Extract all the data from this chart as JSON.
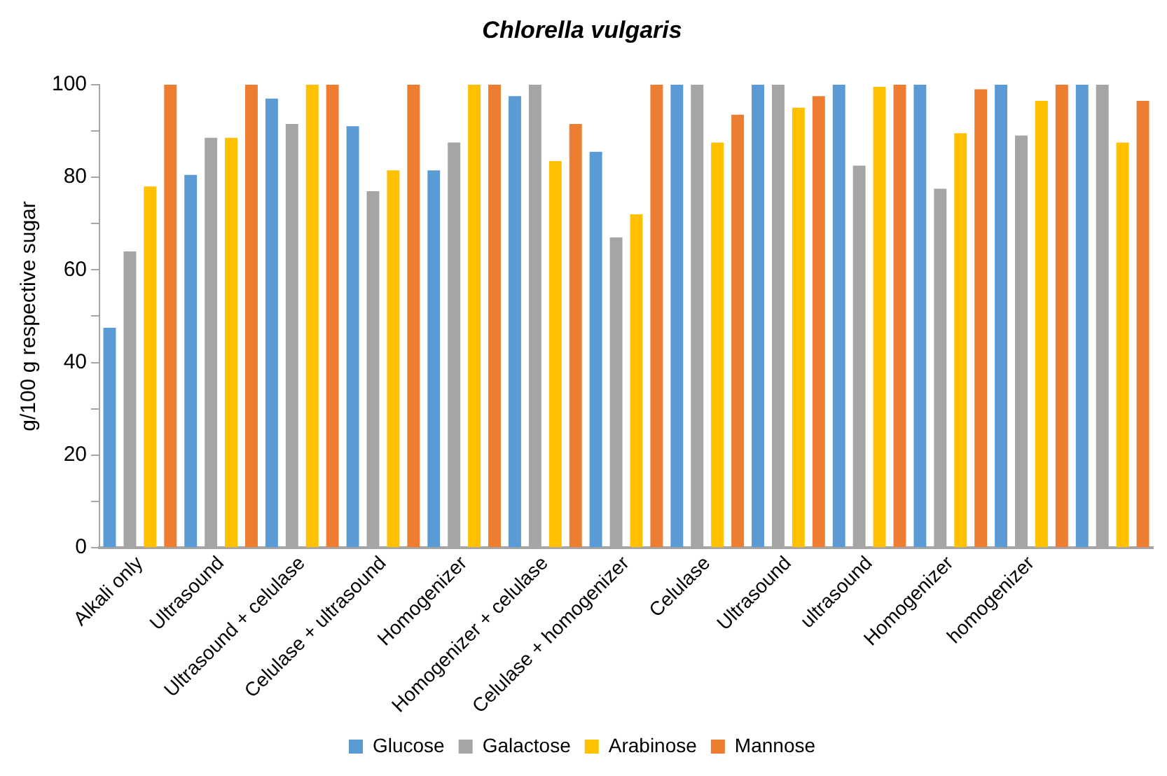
{
  "chart_data": {
    "type": "bar",
    "title": "Chlorella vulgaris",
    "ylabel": "g/100 g respective sugar",
    "categories": [
      "Alkali only",
      "Ultrasound",
      "Ultrasound + celulase",
      "Celulase + ultrasound",
      "Homogenizer",
      "Homogenizer + celulase",
      "Celulase + homogenizer",
      "Celulase",
      "Ultrasound",
      "ultrasound",
      "Homogenizer",
      "homogenizer",
      null
    ],
    "series": [
      {
        "name": "Glucose",
        "color": "#5b9bd5",
        "values": [
          47.5,
          80.5,
          97,
          91,
          81.5,
          97.5,
          85.5,
          100,
          100,
          100,
          100,
          100,
          100
        ]
      },
      {
        "name": "Galactose",
        "color": "#a5a5a5",
        "values": [
          64,
          88.5,
          91.5,
          77,
          87.5,
          100,
          67,
          100,
          100,
          82.5,
          77.5,
          89,
          100
        ]
      },
      {
        "name": "Arabinose",
        "color": "#ffc000",
        "values": [
          78,
          88.5,
          100,
          81.5,
          100,
          83.5,
          72,
          87.5,
          95,
          99.5,
          89.5,
          96.5,
          87.5
        ]
      },
      {
        "name": "Mannose",
        "color": "#ed7d31",
        "values": [
          100,
          100,
          100,
          100,
          100,
          91.5,
          100,
          93.5,
          97.5,
          100,
          99,
          100,
          96.5
        ]
      }
    ],
    "ylim": [
      0,
      100
    ],
    "yticks": [
      0,
      {
        "value": 10,
        "label": null
      },
      20,
      {
        "value": 30,
        "label": null
      },
      40,
      {
        "value": 50,
        "label": null
      },
      60,
      {
        "value": 70,
        "label": null
      },
      80,
      {
        "value": 90,
        "label": null
      },
      100
    ],
    "grid": false,
    "legend": "bottom"
  }
}
